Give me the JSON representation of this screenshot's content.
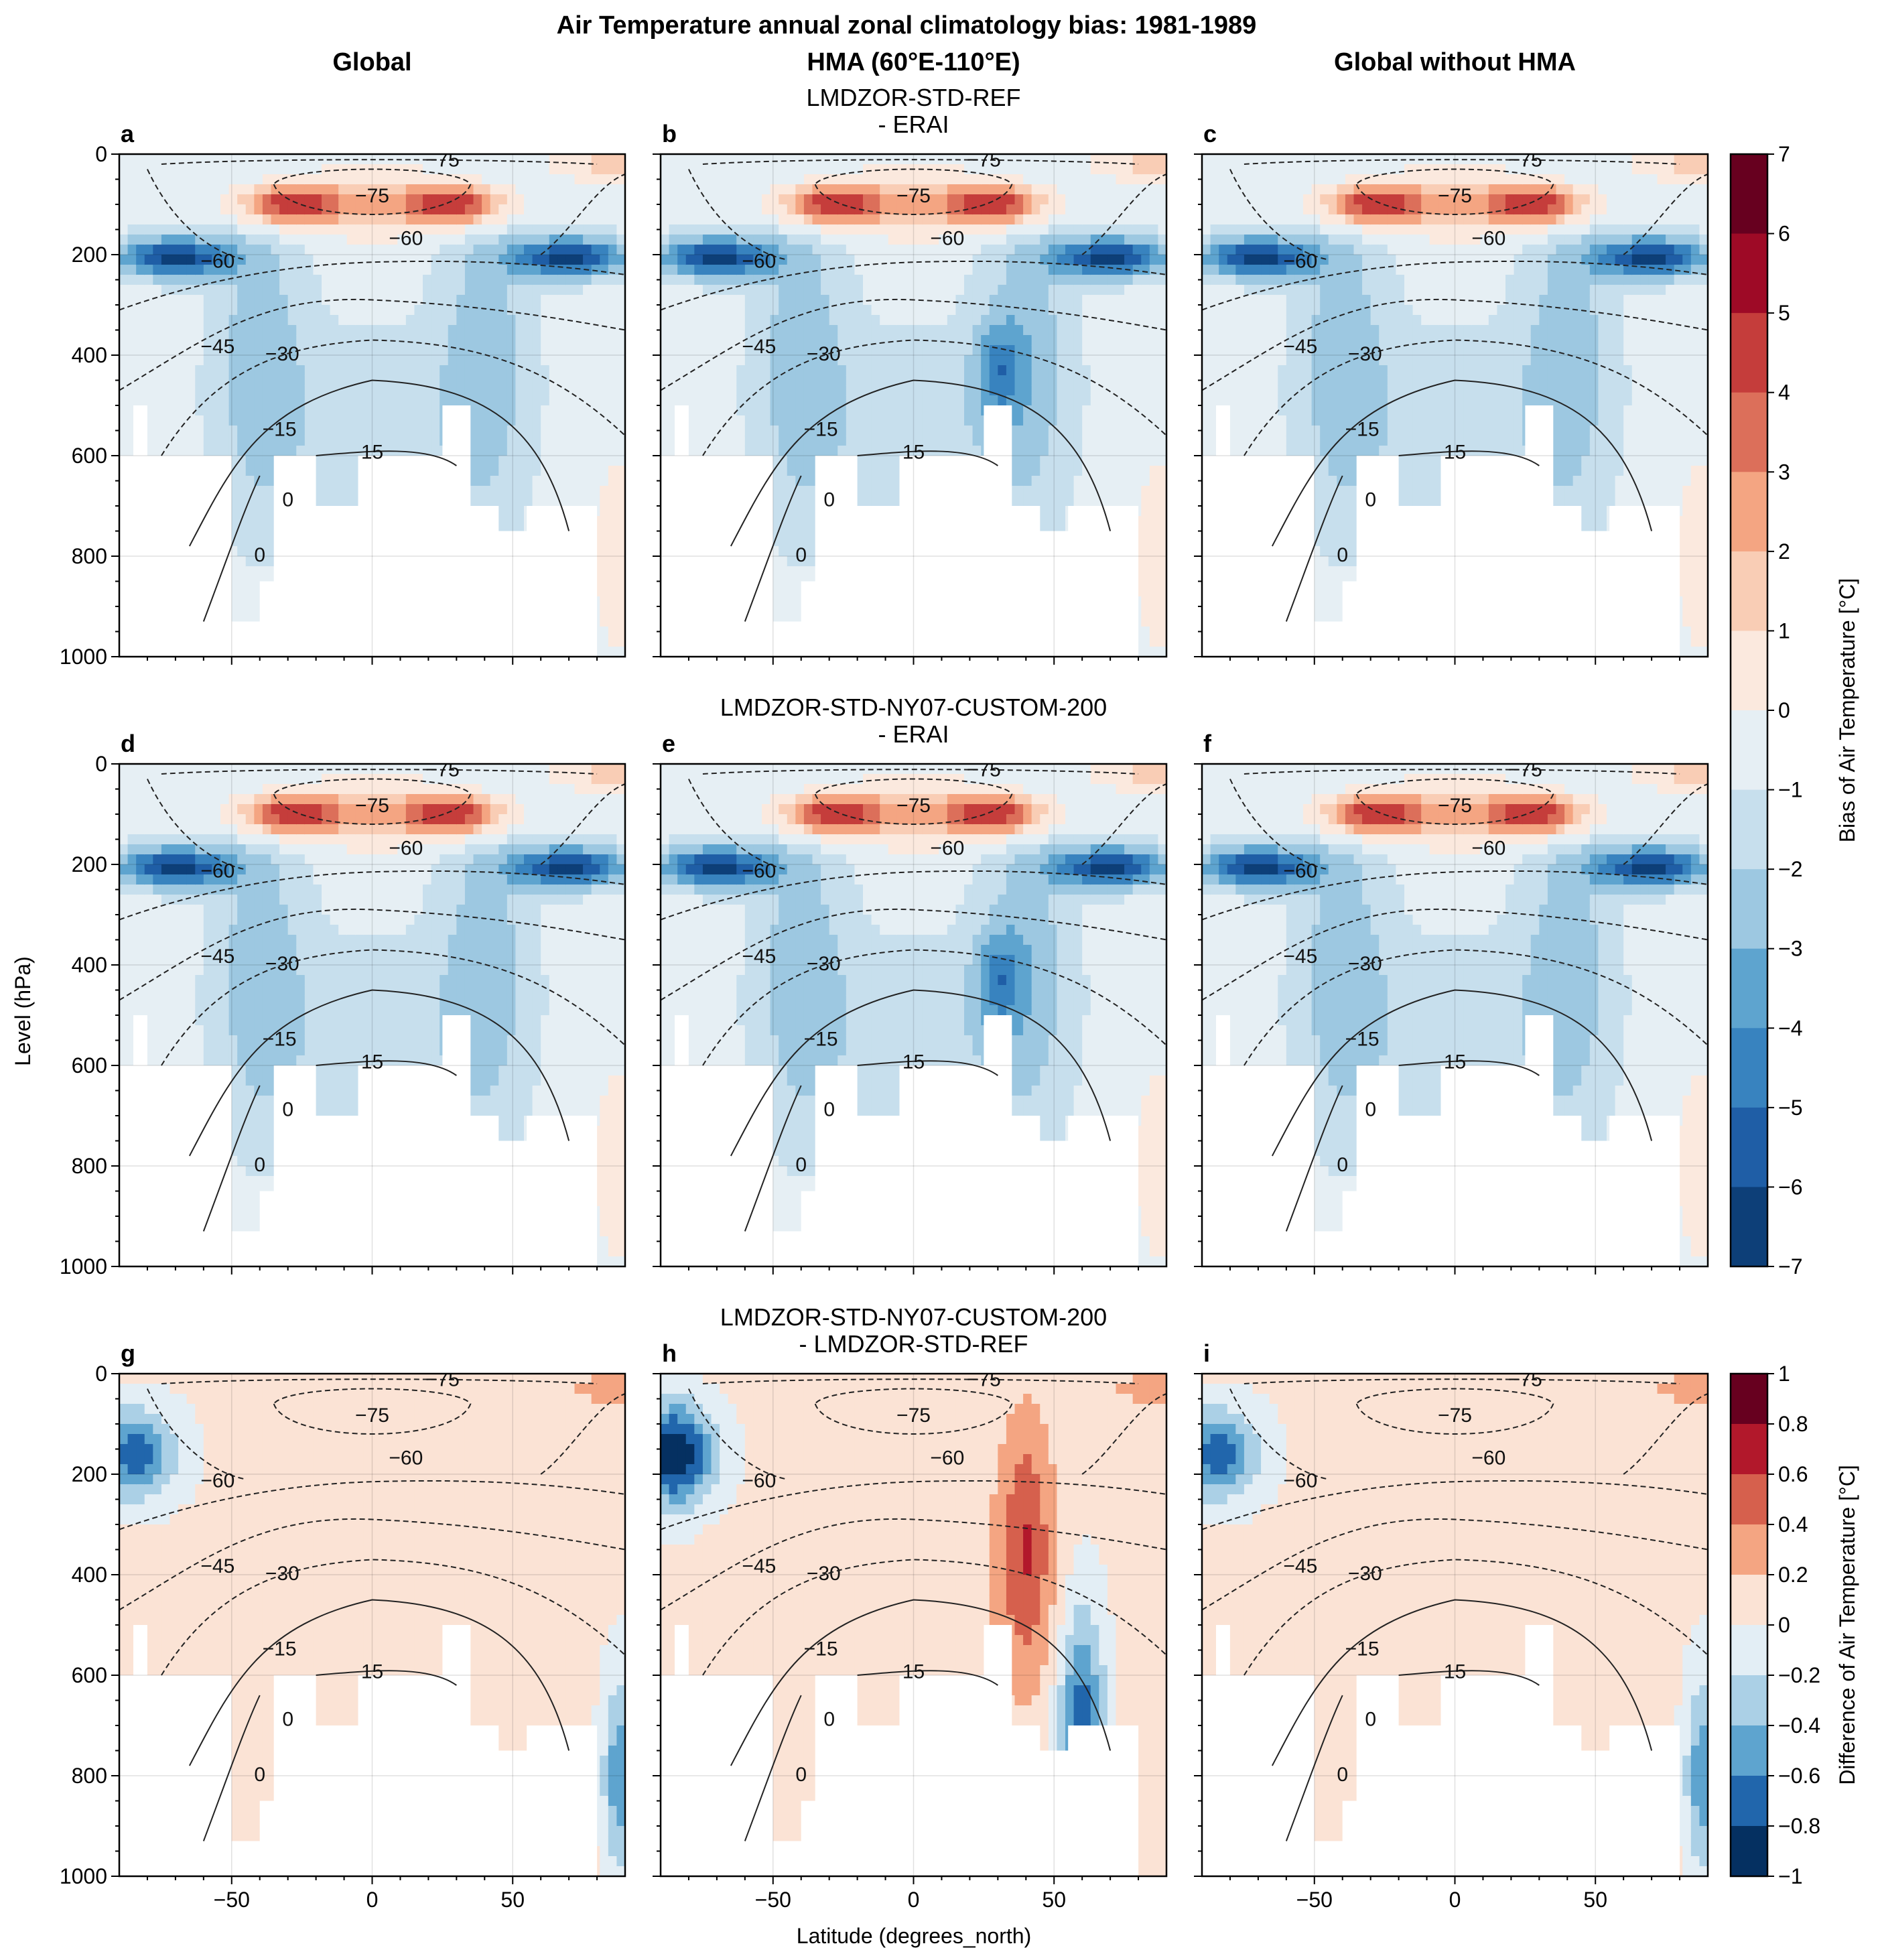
{
  "chart_data": {
    "type": "contour",
    "suptitle": "Air Temperature annual zonal climatology bias: 1981-1989",
    "column_titles": [
      "Global",
      "HMA (60°E-110°E)",
      "Global without HMA"
    ],
    "row_titles": [
      [
        "LMDZOR-STD-REF",
        "- ERAI"
      ],
      [
        "LMDZOR-STD-NY07-CUSTOM-200",
        "- ERAI"
      ],
      [
        "LMDZOR-STD-NY07-CUSTOM-200",
        "- LMDZOR-STD-REF"
      ]
    ],
    "panel_labels": [
      "a",
      "b",
      "c",
      "d",
      "e",
      "f",
      "g",
      "h",
      "i"
    ],
    "xlabel": "Latitude (degrees_north)",
    "ylabel": "Level (hPa)",
    "xlim": [
      -90,
      90
    ],
    "ylim": [
      1000,
      0
    ],
    "x_ticks": [
      "−50",
      "0",
      "50"
    ],
    "x_tick_values": [
      -50,
      0,
      50
    ],
    "y_ticks": [
      "0",
      "200",
      "400",
      "600",
      "800",
      "1000"
    ],
    "y_tick_values": [
      0,
      200,
      400,
      600,
      800,
      1000
    ],
    "grid": true,
    "contour_levels": [
      "−75",
      "−60",
      "−45",
      "−30",
      "−15",
      "0",
      "15"
    ],
    "colorbars": [
      {
        "label": "Bias of Air Temperature [°C]",
        "ticks": [
          "7",
          "6",
          "5",
          "4",
          "3",
          "2",
          "1",
          "0",
          "−1",
          "−2",
          "−3",
          "−4",
          "−5",
          "−6",
          "−7"
        ],
        "range": [
          -7,
          7
        ],
        "colors": [
          "#67001f",
          "#9e0a26",
          "#c53d3b",
          "#dc6f5a",
          "#f4a582",
          "#f9cdb5",
          "#fbe9de",
          "#e6eff4",
          "#c7dfed",
          "#9dc8e1",
          "#5ea4cf",
          "#3883bf",
          "#1f5ea6",
          "#0d3f78"
        ]
      },
      {
        "label": "Difference of Air Temperature [°C]",
        "ticks": [
          "1",
          "0.8",
          "0.6",
          "0.4",
          "0.2",
          "0",
          "−0.2",
          "−0.4",
          "−0.6",
          "−0.8",
          "−1"
        ],
        "range": [
          -1,
          1
        ],
        "colors": [
          "#67001f",
          "#b2182b",
          "#d6604d",
          "#f4a582",
          "#fbe3d5",
          "#e3eef5",
          "#abd0e6",
          "#5ea4cf",
          "#2166ac",
          "#053061"
        ]
      }
    ]
  }
}
